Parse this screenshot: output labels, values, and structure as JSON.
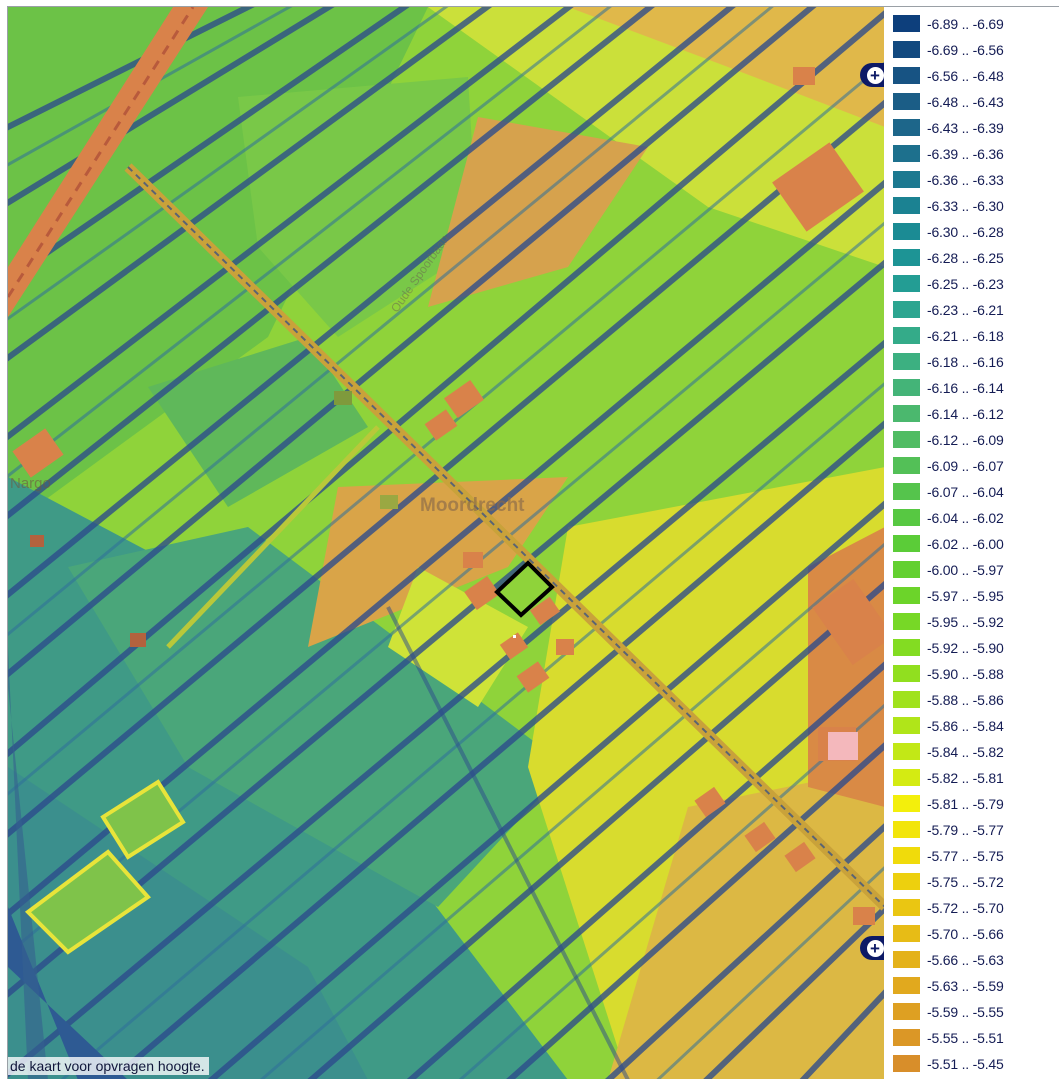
{
  "map": {
    "places": {
      "main": "Moordrecht",
      "side": "Nargo",
      "road": "Oude Spoorbaan"
    },
    "status_hint": "de kaart voor opvragen hoogte.",
    "zoom_buttons": [
      {
        "name": "zoom-in-top",
        "icon": "plus-icon",
        "label": "+"
      },
      {
        "name": "zoom-in-bottom",
        "icon": "plus-icon",
        "label": "+"
      }
    ],
    "selection": {
      "icon": "selected-parcel-outline",
      "color": "#000000"
    },
    "colors": {
      "background": "#5fae54",
      "ditch": "#2b4a8c",
      "building": "#d9824a",
      "road": "#c9a23a"
    }
  },
  "legend": {
    "items": [
      {
        "label": "-6.89 .. -6.69",
        "color": "#0d3f7c"
      },
      {
        "label": "-6.69 .. -6.56",
        "color": "#12497f"
      },
      {
        "label": "-6.56 .. -6.48",
        "color": "#175383"
      },
      {
        "label": "-6.48 .. -6.43",
        "color": "#1b5d86"
      },
      {
        "label": "-6.43 .. -6.39",
        "color": "#1d668a"
      },
      {
        "label": "-6.39 .. -6.36",
        "color": "#1d708d"
      },
      {
        "label": "-6.36 .. -6.33",
        "color": "#1c7990"
      },
      {
        "label": "-6.33 .. -6.30",
        "color": "#1b8292"
      },
      {
        "label": "-6.30 .. -6.28",
        "color": "#1b8b94"
      },
      {
        "label": "-6.28 .. -6.25",
        "color": "#1d9495"
      },
      {
        "label": "-6.25 .. -6.23",
        "color": "#239d94"
      },
      {
        "label": "-6.23 .. -6.21",
        "color": "#2ca590"
      },
      {
        "label": "-6.21 .. -6.18",
        "color": "#34ab89"
      },
      {
        "label": "-6.18 .. -6.16",
        "color": "#3cb081"
      },
      {
        "label": "-6.16 .. -6.14",
        "color": "#44b478"
      },
      {
        "label": "-6.14 .. -6.12",
        "color": "#4bb86e"
      },
      {
        "label": "-6.12 .. -6.09",
        "color": "#50bc63"
      },
      {
        "label": "-6.09 .. -6.07",
        "color": "#53c057"
      },
      {
        "label": "-6.07 .. -6.04",
        "color": "#55c44c"
      },
      {
        "label": "-6.04 .. -6.02",
        "color": "#57c842"
      },
      {
        "label": "-6.02 .. -6.00",
        "color": "#5bcc38"
      },
      {
        "label": "-6.00 .. -5.97",
        "color": "#63d030"
      },
      {
        "label": "-5.97 .. -5.95",
        "color": "#6cd42a"
      },
      {
        "label": "-5.95 .. -5.92",
        "color": "#77d826"
      },
      {
        "label": "-5.92 .. -5.90",
        "color": "#83dc22"
      },
      {
        "label": "-5.90 .. -5.88",
        "color": "#91df1f"
      },
      {
        "label": "-5.88 .. -5.86",
        "color": "#a0e21c"
      },
      {
        "label": "-5.86 .. -5.84",
        "color": "#b0e519"
      },
      {
        "label": "-5.84 .. -5.82",
        "color": "#c2e816"
      },
      {
        "label": "-5.82 .. -5.81",
        "color": "#d4eb12"
      },
      {
        "label": "-5.81 .. -5.79",
        "color": "#f3ef0c"
      },
      {
        "label": "-5.79 .. -5.77",
        "color": "#f2e50a"
      },
      {
        "label": "-5.77 .. -5.75",
        "color": "#f0db0b"
      },
      {
        "label": "-5.75 .. -5.72",
        "color": "#edd00e"
      },
      {
        "label": "-5.72 .. -5.70",
        "color": "#eac612"
      },
      {
        "label": "-5.70 .. -5.66",
        "color": "#e7bc16"
      },
      {
        "label": "-5.66 .. -5.63",
        "color": "#e4b21a"
      },
      {
        "label": "-5.63 .. -5.59",
        "color": "#e1a91e"
      },
      {
        "label": "-5.59 .. -5.55",
        "color": "#dea022"
      },
      {
        "label": "-5.55 .. -5.51",
        "color": "#db9726"
      },
      {
        "label": "-5.51 .. -5.45",
        "color": "#d88e2a"
      }
    ]
  }
}
